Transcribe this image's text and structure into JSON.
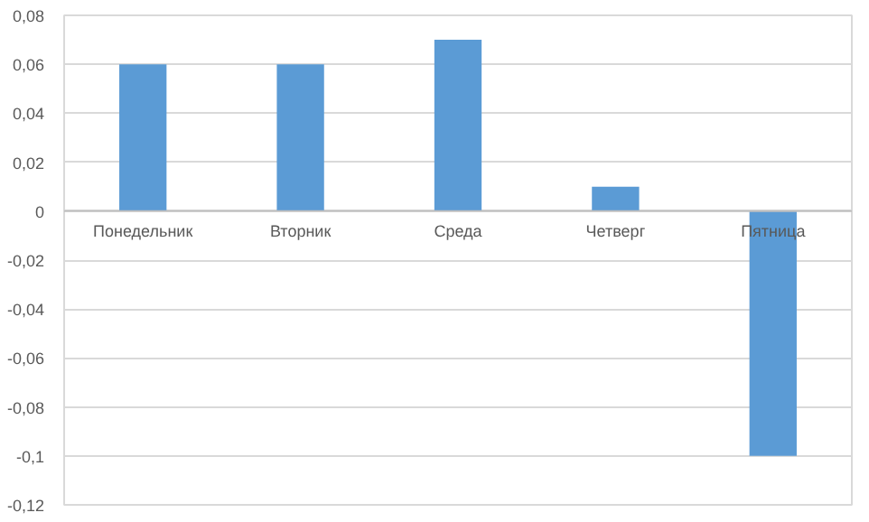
{
  "chart_data": {
    "type": "bar",
    "categories": [
      "Понедельник",
      "Вторник",
      "Среда",
      "Четверг",
      "Пятница"
    ],
    "values": [
      0.06,
      0.06,
      0.07,
      0.01,
      -0.1
    ],
    "color": "#5b9bd5",
    "ylim": [
      -0.12,
      0.08
    ],
    "yticks": [
      {
        "value": 0.08,
        "label": "0,08"
      },
      {
        "value": 0.06,
        "label": "0,06"
      },
      {
        "value": 0.04,
        "label": "0,04"
      },
      {
        "value": 0.02,
        "label": "0,02"
      },
      {
        "value": 0,
        "label": "0"
      },
      {
        "value": -0.02,
        "label": "-0,02"
      },
      {
        "value": -0.04,
        "label": "-0,04"
      },
      {
        "value": -0.06,
        "label": "-0,06"
      },
      {
        "value": -0.08,
        "label": "-0,08"
      },
      {
        "value": -0.1,
        "label": "-0,1"
      },
      {
        "value": -0.12,
        "label": "-0,12"
      }
    ],
    "grid": "y"
  }
}
